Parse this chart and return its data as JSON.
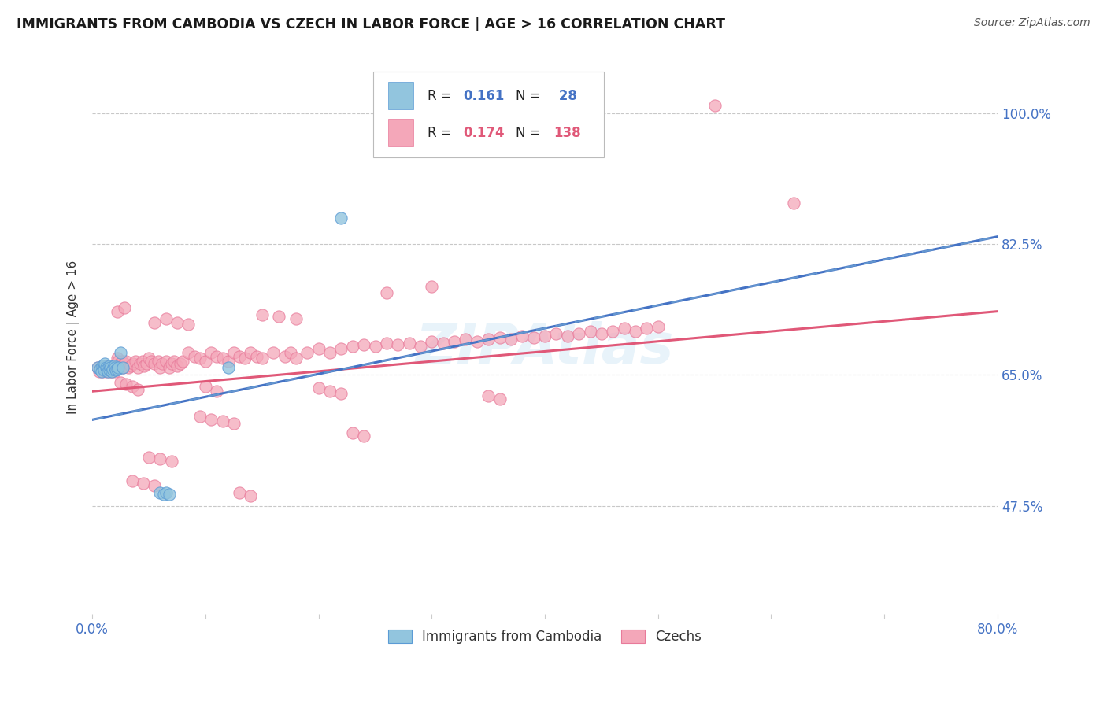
{
  "title": "IMMIGRANTS FROM CAMBODIA VS CZECH IN LABOR FORCE | AGE > 16 CORRELATION CHART",
  "source": "Source: ZipAtlas.com",
  "ylabel_label": "In Labor Force | Age > 16",
  "legend_label1": "Immigrants from Cambodia",
  "legend_label2": "Czechs",
  "color_cambodia": "#92c5de",
  "color_czech": "#f4a7b9",
  "color_blue_text": "#4472c4",
  "color_pink_text": "#e05c7a",
  "xmin": 0.0,
  "xmax": 0.8,
  "ymin": 0.33,
  "ymax": 1.07,
  "yticks": [
    0.475,
    0.65,
    0.825,
    1.0
  ],
  "ytick_labels": [
    "47.5%",
    "65.0%",
    "82.5%",
    "100.0%"
  ],
  "watermark": "ZIPAtlas",
  "cambodia_x": [
    0.005,
    0.007,
    0.008,
    0.009,
    0.01,
    0.01,
    0.011,
    0.012,
    0.013,
    0.014,
    0.015,
    0.015,
    0.016,
    0.017,
    0.018,
    0.019,
    0.02,
    0.021,
    0.022,
    0.023,
    0.025,
    0.027,
    0.06,
    0.063,
    0.065,
    0.068,
    0.12,
    0.22
  ],
  "cambodia_y": [
    0.66,
    0.658,
    0.655,
    0.662,
    0.66,
    0.657,
    0.665,
    0.66,
    0.658,
    0.655,
    0.662,
    0.657,
    0.66,
    0.655,
    0.658,
    0.662,
    0.66,
    0.657,
    0.658,
    0.66,
    0.68,
    0.66,
    0.492,
    0.49,
    0.492,
    0.49,
    0.66,
    0.86
  ],
  "czech_x": [
    0.005,
    0.006,
    0.007,
    0.008,
    0.009,
    0.01,
    0.01,
    0.011,
    0.012,
    0.013,
    0.014,
    0.015,
    0.015,
    0.016,
    0.017,
    0.018,
    0.019,
    0.02,
    0.02,
    0.021,
    0.022,
    0.023,
    0.024,
    0.025,
    0.026,
    0.027,
    0.028,
    0.03,
    0.032,
    0.034,
    0.036,
    0.038,
    0.04,
    0.042,
    0.044,
    0.046,
    0.048,
    0.05,
    0.052,
    0.055,
    0.058,
    0.06,
    0.062,
    0.065,
    0.068,
    0.07,
    0.072,
    0.075,
    0.078,
    0.08,
    0.085,
    0.09,
    0.095,
    0.1,
    0.105,
    0.11,
    0.115,
    0.12,
    0.125,
    0.13,
    0.135,
    0.14,
    0.145,
    0.15,
    0.16,
    0.17,
    0.175,
    0.18,
    0.19,
    0.2,
    0.21,
    0.22,
    0.23,
    0.24,
    0.25,
    0.26,
    0.27,
    0.28,
    0.29,
    0.3,
    0.31,
    0.32,
    0.33,
    0.34,
    0.35,
    0.36,
    0.37,
    0.38,
    0.39,
    0.4,
    0.41,
    0.42,
    0.43,
    0.44,
    0.45,
    0.46,
    0.47,
    0.48,
    0.49,
    0.5,
    0.055,
    0.065,
    0.075,
    0.085,
    0.15,
    0.165,
    0.18,
    0.025,
    0.03,
    0.035,
    0.04,
    0.1,
    0.11,
    0.2,
    0.21,
    0.22,
    0.35,
    0.36,
    0.23,
    0.24,
    0.095,
    0.105,
    0.115,
    0.125,
    0.05,
    0.06,
    0.07,
    0.035,
    0.045,
    0.055,
    0.13,
    0.14,
    0.022,
    0.028,
    0.26,
    0.3,
    0.55,
    0.62
  ],
  "czech_y": [
    0.66,
    0.655,
    0.658,
    0.66,
    0.655,
    0.662,
    0.658,
    0.66,
    0.655,
    0.658,
    0.66,
    0.662,
    0.655,
    0.66,
    0.655,
    0.658,
    0.66,
    0.662,
    0.655,
    0.658,
    0.672,
    0.668,
    0.665,
    0.662,
    0.668,
    0.66,
    0.665,
    0.668,
    0.66,
    0.662,
    0.665,
    0.668,
    0.66,
    0.665,
    0.668,
    0.662,
    0.665,
    0.672,
    0.668,
    0.665,
    0.668,
    0.66,
    0.665,
    0.668,
    0.66,
    0.665,
    0.668,
    0.662,
    0.665,
    0.668,
    0.68,
    0.675,
    0.672,
    0.668,
    0.68,
    0.675,
    0.672,
    0.668,
    0.68,
    0.675,
    0.672,
    0.68,
    0.675,
    0.672,
    0.68,
    0.675,
    0.68,
    0.672,
    0.68,
    0.685,
    0.68,
    0.685,
    0.688,
    0.69,
    0.688,
    0.692,
    0.69,
    0.692,
    0.688,
    0.695,
    0.692,
    0.695,
    0.698,
    0.695,
    0.698,
    0.7,
    0.698,
    0.702,
    0.7,
    0.702,
    0.705,
    0.702,
    0.705,
    0.708,
    0.705,
    0.708,
    0.712,
    0.708,
    0.712,
    0.715,
    0.72,
    0.725,
    0.72,
    0.718,
    0.73,
    0.728,
    0.725,
    0.64,
    0.638,
    0.635,
    0.63,
    0.635,
    0.628,
    0.632,
    0.628,
    0.625,
    0.622,
    0.618,
    0.572,
    0.568,
    0.595,
    0.59,
    0.588,
    0.585,
    0.54,
    0.538,
    0.535,
    0.508,
    0.505,
    0.502,
    0.492,
    0.488,
    0.735,
    0.74,
    0.76,
    0.768,
    1.01,
    0.88
  ],
  "trendline_czech_x0": 0.0,
  "trendline_czech_x1": 0.8,
  "trendline_czech_y0": 0.628,
  "trendline_czech_y1": 0.735,
  "trendline_cam_x0": 0.0,
  "trendline_cam_x1": 0.8,
  "trendline_cam_y0": 0.59,
  "trendline_cam_y1": 0.835
}
